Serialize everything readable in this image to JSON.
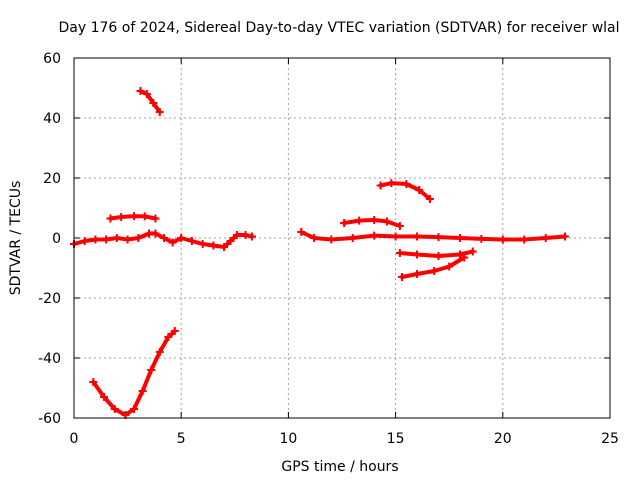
{
  "chart_data": {
    "type": "scatter",
    "title": "Day 176 of 2024, Sidereal Day-to-day VTEC variation (SDTVAR) for receiver wlal",
    "xlabel": "GPS time / hours",
    "ylabel": "SDTVAR / TECUs",
    "xlim": [
      0,
      25
    ],
    "ylim": [
      -60,
      60
    ],
    "xticks": [
      0,
      5,
      10,
      15,
      20,
      25
    ],
    "yticks": [
      -60,
      -40,
      -20,
      0,
      20,
      40,
      60
    ],
    "grid": true,
    "legend": "none",
    "marker_color": "#ff0000",
    "series": [
      {
        "x": [
          3.1,
          3.4,
          3.7,
          4.0
        ],
        "y": [
          49,
          48,
          45,
          42
        ]
      },
      {
        "x": [
          1.7,
          2.2,
          2.8,
          3.3,
          3.8
        ],
        "y": [
          6.5,
          7,
          7.3,
          7.2,
          6.5
        ]
      },
      {
        "x": [
          0.0,
          0.5,
          1.0,
          1.5,
          2.0,
          2.5,
          3.0,
          3.5,
          3.8,
          4.2,
          4.6,
          5.0,
          5.5,
          6.0,
          6.5,
          7.0,
          7.3,
          7.6,
          8.0,
          8.3
        ],
        "y": [
          -2,
          -1,
          -0.5,
          -0.5,
          0,
          -0.5,
          0,
          1.5,
          1.5,
          0,
          -1.5,
          0,
          -1,
          -2,
          -2.5,
          -3,
          -1,
          1,
          1,
          0.5
        ]
      },
      {
        "x": [
          0.9,
          1.4,
          1.9,
          2.4,
          2.8,
          3.2,
          3.6,
          4.0,
          4.4,
          4.7
        ],
        "y": [
          -48,
          -53,
          -57,
          -59,
          -57,
          -51,
          -44,
          -38,
          -33,
          -31
        ]
      },
      {
        "x": [
          10.6,
          11.2,
          12.0,
          13.0,
          14.0,
          15.0,
          16.0,
          17.0,
          18.0,
          19.0,
          20.0,
          21.0,
          22.0,
          22.9
        ],
        "y": [
          2,
          0,
          -0.5,
          0,
          0.8,
          0.5,
          0.5,
          0.3,
          0,
          -0.3,
          -0.5,
          -0.5,
          0,
          0.5
        ]
      },
      {
        "x": [
          12.6,
          13.3,
          14.0,
          14.6,
          15.2
        ],
        "y": [
          5,
          5.8,
          6,
          5.5,
          4
        ]
      },
      {
        "x": [
          14.3,
          14.8,
          15.5,
          16.1,
          16.6
        ],
        "y": [
          17.5,
          18.3,
          18,
          16,
          13
        ]
      },
      {
        "x": [
          15.2,
          16.0,
          17.0,
          18.0,
          18.6
        ],
        "y": [
          -5,
          -5.5,
          -6,
          -5.5,
          -4.5
        ]
      },
      {
        "x": [
          15.3,
          16.0,
          16.8,
          17.5,
          18.2
        ],
        "y": [
          -13,
          -12,
          -11,
          -9.5,
          -6.5
        ]
      }
    ]
  }
}
